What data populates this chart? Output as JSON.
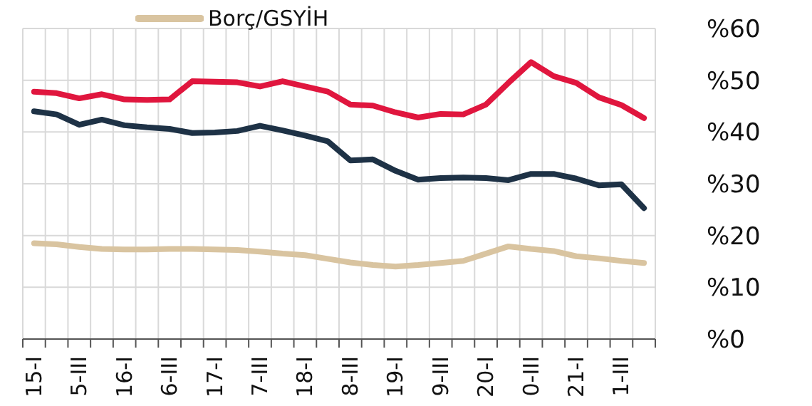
{
  "chart_data": {
    "type": "line",
    "categories": [
      "15-I",
      null,
      "5-III",
      null,
      "16-I",
      null,
      "6-III",
      null,
      "17-I",
      null,
      "7-III",
      null,
      "18-I",
      null,
      "8-III",
      null,
      "19-I",
      null,
      "9-III",
      null,
      "20-I",
      null,
      "0-III",
      null,
      "21-I",
      null,
      "1-III",
      null
    ],
    "series": [
      {
        "color": "#e0163e",
        "values": [
          47.8,
          47.5,
          46.5,
          47.3,
          46.3,
          46.2,
          46.3,
          49.8,
          49.7,
          49.6,
          48.8,
          49.8,
          48.8,
          47.8,
          45.3,
          45.1,
          43.8,
          42.8,
          43.5,
          43.4,
          45.3,
          49.5,
          53.5,
          50.8,
          49.5,
          46.7,
          45.2,
          42.7
        ]
      },
      {
        "color": "#1e3246",
        "values": [
          44,
          43.4,
          41.4,
          42.4,
          41.3,
          40.9,
          40.6,
          39.8,
          39.9,
          40.2,
          41.2,
          40.3,
          39.3,
          38.2,
          34.5,
          34.7,
          32.5,
          30.8,
          31.1,
          31.2,
          31.1,
          30.7,
          31.9,
          31.9,
          31,
          29.7,
          29.9,
          25.3
        ]
      },
      {
        "name": "Borç/GSYİH",
        "color": "#d9c4a0",
        "values": [
          18.5,
          18.3,
          17.8,
          17.4,
          17.3,
          17.3,
          17.4,
          17.4,
          17.3,
          17.2,
          16.9,
          16.5,
          16.2,
          15.5,
          14.8,
          14.3,
          14,
          14.3,
          14.7,
          15.1,
          16.5,
          17.9,
          17.4,
          17,
          16,
          15.6,
          15.1,
          14.7
        ]
      }
    ],
    "ylim": [
      0,
      60
    ],
    "yticks": [
      {
        "value": 0,
        "label": "%0"
      },
      {
        "value": 10,
        "label": "%10"
      },
      {
        "value": 20,
        "label": "%20"
      },
      {
        "value": 30,
        "label": "%30"
      },
      {
        "value": 40,
        "label": "%40"
      },
      {
        "value": 50,
        "label": "%50"
      },
      {
        "value": 60,
        "label": "%60"
      }
    ],
    "grid": true,
    "legend": "top left",
    "marker": "none",
    "line_style": "solid"
  }
}
